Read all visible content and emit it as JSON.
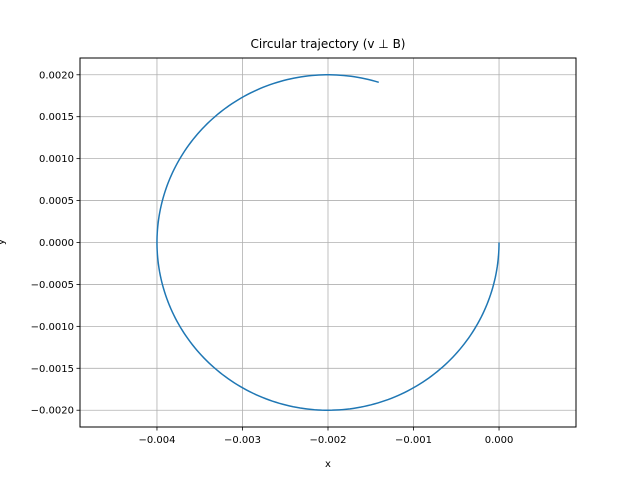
{
  "chart_data": {
    "type": "line",
    "title": "Circular trajectory (v ⊥ B)",
    "xlabel": "x",
    "ylabel": "y",
    "xlim": [
      -0.0049,
      0.0009
    ],
    "ylim": [
      -0.0022,
      0.0022
    ],
    "x_ticks": [
      "−0.004",
      "−0.003",
      "−0.002",
      "−0.001",
      "0.000"
    ],
    "x_tick_values": [
      -0.004,
      -0.003,
      -0.002,
      -0.001,
      0.0
    ],
    "y_ticks": [
      "−0.0020",
      "−0.0015",
      "−0.0010",
      "−0.0005",
      "0.0000",
      "0.0005",
      "0.0010",
      "0.0015",
      "0.0020"
    ],
    "y_tick_values": [
      -0.002,
      -0.0015,
      -0.001,
      -0.0005,
      0.0,
      0.0005,
      0.001,
      0.0015,
      0.002
    ],
    "grid": true,
    "series": [
      {
        "color": "#1f77b4",
        "shape": "circular arc",
        "center": [
          -0.002,
          0.0
        ],
        "radius": 0.002,
        "start": [
          0.0,
          0.0
        ],
        "end": [
          -0.0014,
          0.00193
        ],
        "points": [
          [
            0.0,
            0.0
          ],
          [
            -3.8e-05,
            -0.000388
          ],
          [
            -0.000152,
            -0.000761
          ],
          [
            -0.000338,
            -0.001105
          ],
          [
            -0.000586,
            -0.001414
          ],
          [
            -0.000889,
            -0.001663
          ],
          [
            -0.001235,
            -0.001848
          ],
          [
            -0.00161,
            -0.001962
          ],
          [
            -0.002,
            -0.002
          ],
          [
            -0.00239,
            -0.001962
          ],
          [
            -0.002765,
            -0.001848
          ],
          [
            -0.003111,
            -0.001663
          ],
          [
            -0.003414,
            -0.001414
          ],
          [
            -0.003662,
            -0.001105
          ],
          [
            -0.003848,
            -0.000761
          ],
          [
            -0.003962,
            -0.000388
          ],
          [
            -0.004,
            0.0
          ],
          [
            -0.003962,
            0.000388
          ],
          [
            -0.003848,
            0.000761
          ],
          [
            -0.003662,
            0.001105
          ],
          [
            -0.003414,
            0.001414
          ],
          [
            -0.003111,
            0.001663
          ],
          [
            -0.002765,
            0.001848
          ],
          [
            -0.00239,
            0.001962
          ],
          [
            -0.002,
            0.002
          ],
          [
            -0.0017,
            0.001977
          ],
          [
            -0.0014,
            0.00193
          ]
        ]
      }
    ]
  }
}
